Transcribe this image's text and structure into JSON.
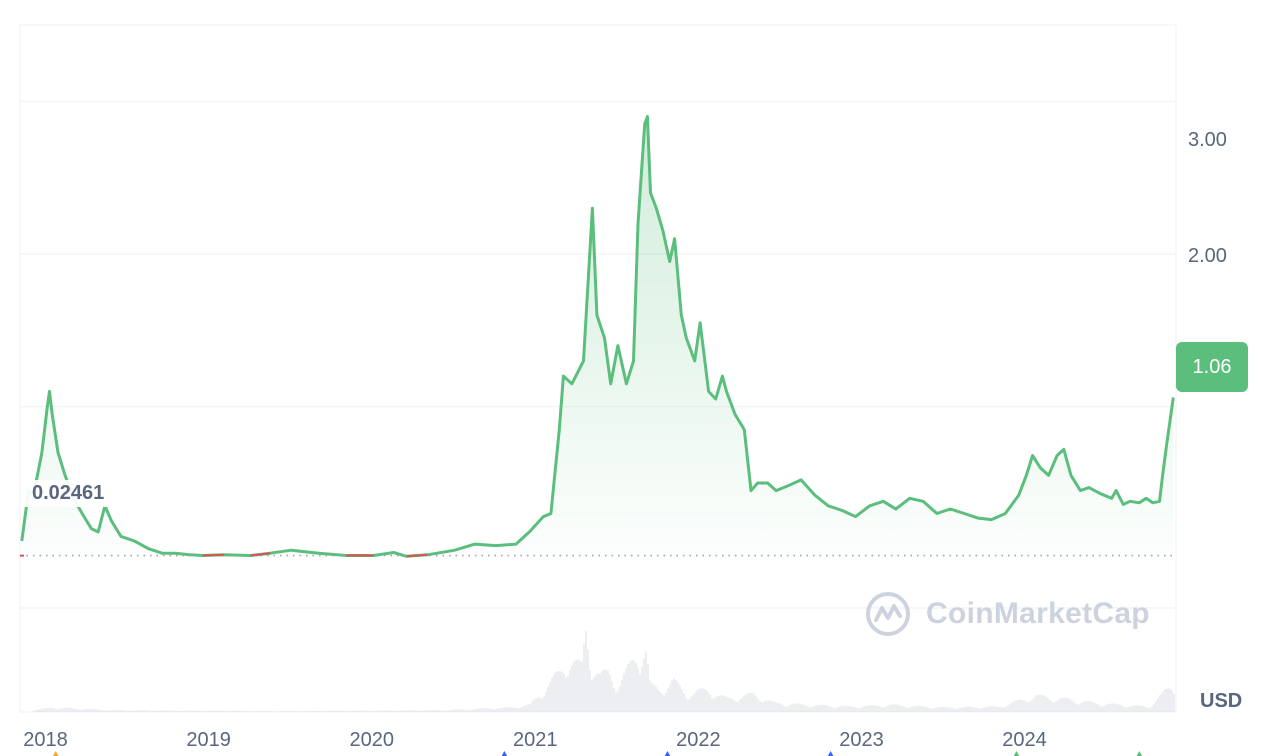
{
  "chart_data": {
    "type": "line",
    "ylim": [
      -1,
      3.5
    ],
    "y_ticks": [
      {
        "value": 3,
        "label": "3.00"
      },
      {
        "value": 2,
        "label": "2.00"
      }
    ],
    "x_ticks": [
      "2018",
      "2019",
      "2020",
      "2021",
      "2022",
      "2023",
      "2024"
    ],
    "x_tick_dates": [
      "2018-01-01",
      "2019-01-01",
      "2020-01-01",
      "2021-01-01",
      "2022-01-01",
      "2023-01-01",
      "2024-01-01"
    ],
    "current_price": 1.06,
    "current_price_label": "1.06",
    "baseline_value": 0.02461,
    "baseline_label": "0.02461",
    "currency": "USD",
    "grid": true,
    "colors": {
      "up": "#5bbe7d",
      "down": "#d9534f",
      "grid": "#eff2f5",
      "text": "#58667e",
      "volume": "#e0e3e8"
    },
    "series": [
      {
        "values": [
          [
            "2017-11-05",
            0.12
          ],
          [
            "2017-11-20",
            0.45
          ],
          [
            "2017-12-01",
            0.42
          ],
          [
            "2017-12-10",
            0.55
          ],
          [
            "2017-12-20",
            0.7
          ],
          [
            "2018-01-01",
            1.0
          ],
          [
            "2018-01-06",
            1.1
          ],
          [
            "2018-01-12",
            0.95
          ],
          [
            "2018-01-25",
            0.7
          ],
          [
            "2018-02-10",
            0.55
          ],
          [
            "2018-03-01",
            0.4
          ],
          [
            "2018-03-20",
            0.3
          ],
          [
            "2018-04-10",
            0.2
          ],
          [
            "2018-04-25",
            0.18
          ],
          [
            "2018-05-10",
            0.35
          ],
          [
            "2018-05-25",
            0.25
          ],
          [
            "2018-06-15",
            0.15
          ],
          [
            "2018-07-15",
            0.12
          ],
          [
            "2018-08-15",
            0.07
          ],
          [
            "2018-09-15",
            0.04
          ],
          [
            "2018-10-15",
            0.04
          ],
          [
            "2018-11-15",
            0.03
          ],
          [
            "2018-12-15",
            0.025
          ],
          [
            "2019-02-01",
            0.03
          ],
          [
            "2019-04-01",
            0.025
          ],
          [
            "2019-05-15",
            0.04
          ],
          [
            "2019-07-01",
            0.06
          ],
          [
            "2019-09-01",
            0.04
          ],
          [
            "2019-11-01",
            0.025
          ],
          [
            "2020-01-01",
            0.025
          ],
          [
            "2020-02-15",
            0.045
          ],
          [
            "2020-03-15",
            0.02
          ],
          [
            "2020-05-01",
            0.03
          ],
          [
            "2020-07-01",
            0.06
          ],
          [
            "2020-08-15",
            0.1
          ],
          [
            "2020-10-01",
            0.09
          ],
          [
            "2020-11-15",
            0.1
          ],
          [
            "2020-12-15",
            0.18
          ],
          [
            "2021-01-15",
            0.28
          ],
          [
            "2021-02-01",
            0.3
          ],
          [
            "2021-02-20",
            0.85
          ],
          [
            "2021-03-01",
            1.2
          ],
          [
            "2021-03-20",
            1.15
          ],
          [
            "2021-04-15",
            1.3
          ],
          [
            "2021-05-05",
            2.3
          ],
          [
            "2021-05-15",
            1.6
          ],
          [
            "2021-06-01",
            1.45
          ],
          [
            "2021-06-15",
            1.15
          ],
          [
            "2021-07-01",
            1.4
          ],
          [
            "2021-07-20",
            1.15
          ],
          [
            "2021-08-05",
            1.3
          ],
          [
            "2021-08-15",
            2.2
          ],
          [
            "2021-08-30",
            2.85
          ],
          [
            "2021-09-05",
            2.9
          ],
          [
            "2021-09-12",
            2.4
          ],
          [
            "2021-09-25",
            2.3
          ],
          [
            "2021-10-10",
            2.15
          ],
          [
            "2021-10-25",
            1.95
          ],
          [
            "2021-11-05",
            2.1
          ],
          [
            "2021-11-20",
            1.6
          ],
          [
            "2021-12-01",
            1.45
          ],
          [
            "2021-12-20",
            1.3
          ],
          [
            "2022-01-01",
            1.55
          ],
          [
            "2022-01-20",
            1.1
          ],
          [
            "2022-02-05",
            1.05
          ],
          [
            "2022-02-20",
            1.2
          ],
          [
            "2022-03-01",
            1.1
          ],
          [
            "2022-03-20",
            0.95
          ],
          [
            "2022-04-10",
            0.85
          ],
          [
            "2022-04-25",
            0.45
          ],
          [
            "2022-05-10",
            0.5
          ],
          [
            "2022-06-01",
            0.5
          ],
          [
            "2022-06-20",
            0.45
          ],
          [
            "2022-07-15",
            0.48
          ],
          [
            "2022-08-15",
            0.52
          ],
          [
            "2022-09-15",
            0.42
          ],
          [
            "2022-10-15",
            0.35
          ],
          [
            "2022-11-15",
            0.32
          ],
          [
            "2022-12-15",
            0.28
          ],
          [
            "2023-01-15",
            0.35
          ],
          [
            "2023-02-15",
            0.38
          ],
          [
            "2023-03-15",
            0.33
          ],
          [
            "2023-04-15",
            0.4
          ],
          [
            "2023-05-15",
            0.38
          ],
          [
            "2023-06-15",
            0.3
          ],
          [
            "2023-07-15",
            0.33
          ],
          [
            "2023-08-15",
            0.3
          ],
          [
            "2023-09-15",
            0.27
          ],
          [
            "2023-10-15",
            0.26
          ],
          [
            "2023-11-15",
            0.3
          ],
          [
            "2023-12-15",
            0.42
          ],
          [
            "2024-01-01",
            0.55
          ],
          [
            "2024-01-15",
            0.68
          ],
          [
            "2024-02-01",
            0.6
          ],
          [
            "2024-02-20",
            0.55
          ],
          [
            "2024-03-10",
            0.68
          ],
          [
            "2024-03-25",
            0.72
          ],
          [
            "2024-04-10",
            0.55
          ],
          [
            "2024-05-01",
            0.45
          ],
          [
            "2024-05-20",
            0.47
          ],
          [
            "2024-06-15",
            0.43
          ],
          [
            "2024-07-10",
            0.4
          ],
          [
            "2024-07-20",
            0.45
          ],
          [
            "2024-08-05",
            0.36
          ],
          [
            "2024-08-20",
            0.38
          ],
          [
            "2024-09-10",
            0.37
          ],
          [
            "2024-09-25",
            0.4
          ],
          [
            "2024-10-10",
            0.37
          ],
          [
            "2024-10-25",
            0.38
          ],
          [
            "2024-11-01",
            0.55
          ],
          [
            "2024-11-10",
            0.75
          ],
          [
            "2024-11-25",
            1.06
          ]
        ]
      }
    ],
    "volume": [
      [
        "2017-12-01",
        0.02
      ],
      [
        "2018-01-10",
        0.05
      ],
      [
        "2018-06-01",
        0.02
      ],
      [
        "2019-06-01",
        0.01
      ],
      [
        "2020-06-01",
        0.02
      ],
      [
        "2020-11-01",
        0.05
      ],
      [
        "2020-12-15",
        0.08
      ],
      [
        "2021-02-20",
        0.45
      ],
      [
        "2021-03-10",
        0.6
      ],
      [
        "2021-04-10",
        0.5
      ],
      [
        "2021-04-20",
        1.0
      ],
      [
        "2021-05-01",
        0.55
      ],
      [
        "2021-05-20",
        0.4
      ],
      [
        "2021-06-10",
        0.45
      ],
      [
        "2021-07-01",
        0.3
      ],
      [
        "2021-08-15",
        0.68
      ],
      [
        "2021-09-01",
        0.7
      ],
      [
        "2021-09-10",
        0.3
      ],
      [
        "2021-10-01",
        0.25
      ],
      [
        "2021-11-01",
        0.35
      ],
      [
        "2021-12-01",
        0.2
      ],
      [
        "2022-01-15",
        0.25
      ],
      [
        "2022-03-01",
        0.15
      ],
      [
        "2022-05-01",
        0.2
      ],
      [
        "2022-06-15",
        0.1
      ],
      [
        "2022-09-01",
        0.08
      ],
      [
        "2022-12-01",
        0.06
      ],
      [
        "2023-03-01",
        0.08
      ],
      [
        "2023-07-01",
        0.05
      ],
      [
        "2023-11-01",
        0.06
      ],
      [
        "2024-01-20",
        0.18
      ],
      [
        "2024-03-20",
        0.15
      ],
      [
        "2024-06-01",
        0.1
      ],
      [
        "2024-08-01",
        0.08
      ],
      [
        "2024-10-01",
        0.06
      ],
      [
        "2024-11-20",
        0.3
      ]
    ]
  },
  "watermark": {
    "text": "CoinMarketCap"
  }
}
